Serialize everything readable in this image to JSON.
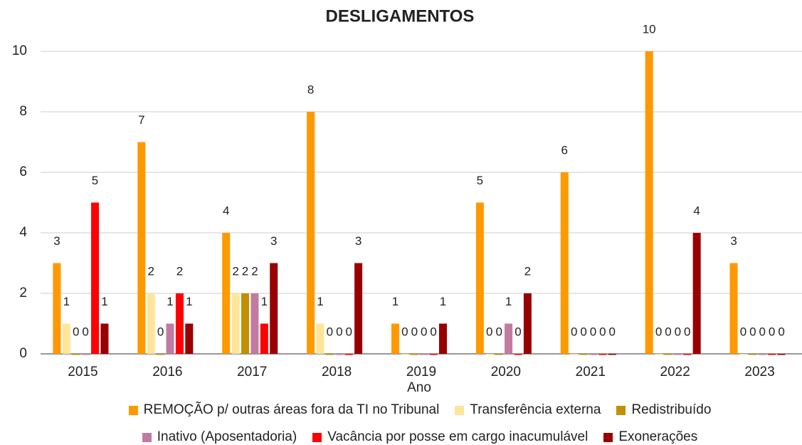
{
  "chart_data": {
    "type": "bar",
    "title": "DESLIGAMENTOS",
    "x_label": "Ano",
    "categories": [
      "2015",
      "2016",
      "2017",
      "2018",
      "2019",
      "2020",
      "2021",
      "2022",
      "2023"
    ],
    "series": [
      {
        "name": "REMOÇÃO p/ outras áreas fora da TI no Tribunal",
        "color": "#ff9900",
        "values": [
          3,
          7,
          4,
          8,
          1,
          5,
          6,
          10,
          3
        ]
      },
      {
        "name": "Transferência externa",
        "color": "#ffe599",
        "values": [
          1,
          2,
          2,
          1,
          0,
          0,
          0,
          0,
          0
        ]
      },
      {
        "name": "Redistribuído",
        "color": "#bf9000",
        "values": [
          0,
          0,
          2,
          0,
          0,
          0,
          0,
          0,
          0
        ]
      },
      {
        "name": "Inativo (Aposentadoria)",
        "color": "#c27ba0",
        "values": [
          0,
          1,
          2,
          0,
          0,
          1,
          0,
          0,
          0
        ]
      },
      {
        "name": "Vacância por posse em cargo inacumulável",
        "color": "#ff0000",
        "values": [
          5,
          2,
          1,
          0,
          0,
          0,
          0,
          0,
          0
        ]
      },
      {
        "name": "Exonerações",
        "color": "#990000",
        "values": [
          1,
          1,
          3,
          3,
          1,
          2,
          0,
          4,
          0
        ]
      }
    ],
    "ylim": [
      0,
      10
    ],
    "yticks": [
      0,
      2,
      4,
      6,
      8,
      10
    ],
    "grid": true,
    "legend": "bottom"
  }
}
